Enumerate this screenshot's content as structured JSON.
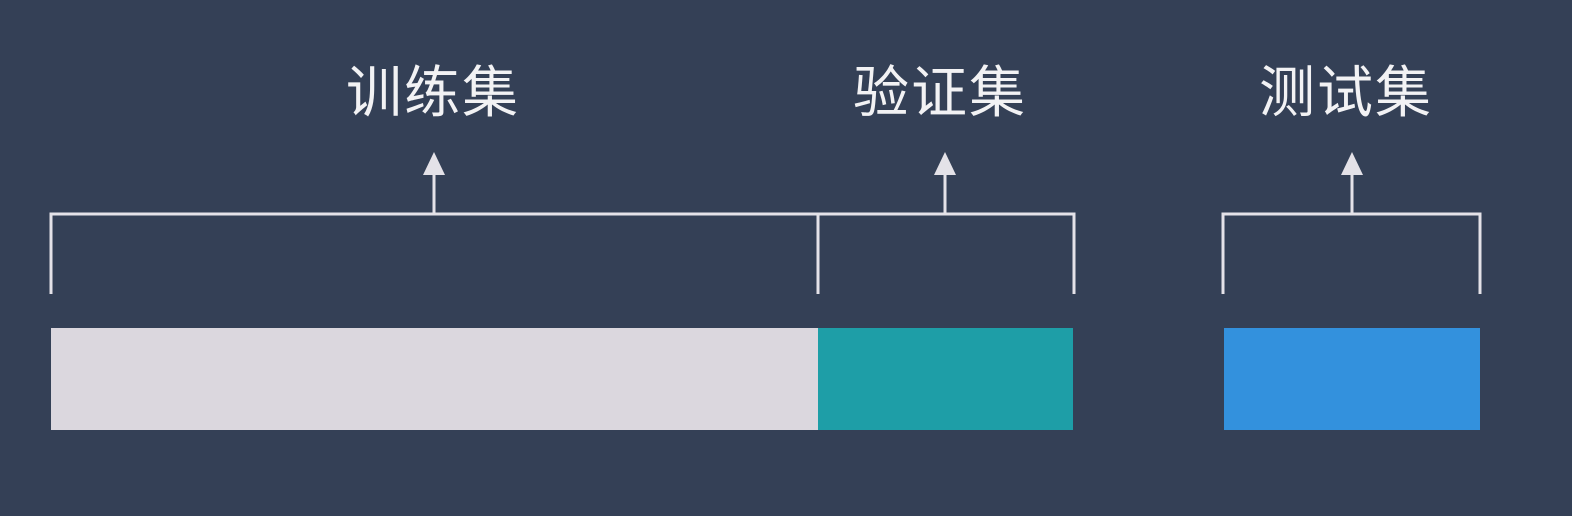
{
  "diagram": {
    "labels": {
      "train": "训练集",
      "validation": "验证集",
      "test": "测试集"
    },
    "colors": {
      "background": "#344056",
      "train_bar": "#dbd7de",
      "validation_bar": "#1e9ea7",
      "test_bar": "#3391dd",
      "lines": "#e4e2e8",
      "text": "#f2f2f4"
    }
  }
}
